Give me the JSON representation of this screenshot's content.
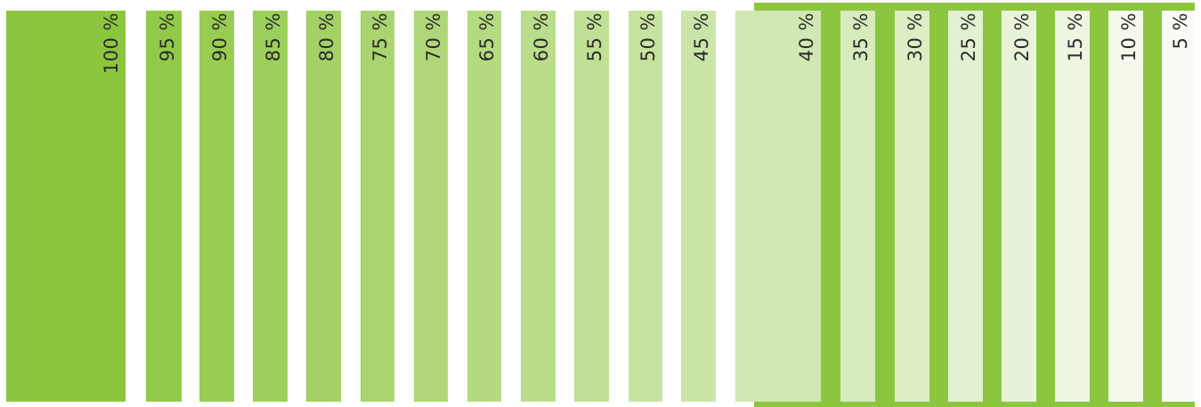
{
  "base_color": "#8cc63f",
  "background_color": "#ffffff",
  "label_color": "#2b2b2b",
  "backdrop": {
    "color": "#8cc63f",
    "starts_at_percent": 40
  },
  "swatches": [
    {
      "percent": 100,
      "label": "100 %"
    },
    {
      "percent": 95,
      "label": "95 %"
    },
    {
      "percent": 90,
      "label": "90 %"
    },
    {
      "percent": 85,
      "label": "85 %"
    },
    {
      "percent": 80,
      "label": "80 %"
    },
    {
      "percent": 75,
      "label": "75 %"
    },
    {
      "percent": 70,
      "label": "70 %"
    },
    {
      "percent": 65,
      "label": "65 %"
    },
    {
      "percent": 60,
      "label": "60 %"
    },
    {
      "percent": 55,
      "label": "55 %"
    },
    {
      "percent": 50,
      "label": "50 %"
    },
    {
      "percent": 45,
      "label": "45 %"
    },
    {
      "percent": 40,
      "label": "40 %"
    },
    {
      "percent": 35,
      "label": "35 %"
    },
    {
      "percent": 30,
      "label": "30 %"
    },
    {
      "percent": 25,
      "label": "25 %"
    },
    {
      "percent": 20,
      "label": "20 %"
    },
    {
      "percent": 15,
      "label": "15 %"
    },
    {
      "percent": 10,
      "label": "10 %"
    },
    {
      "percent": 5,
      "label": "5 %"
    }
  ]
}
